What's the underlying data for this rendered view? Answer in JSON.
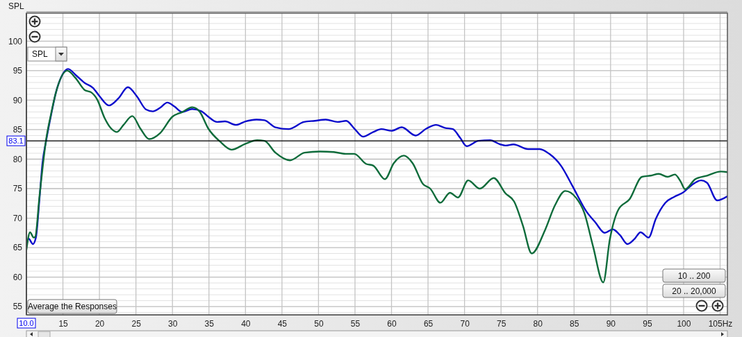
{
  "chart_data": {
    "type": "line",
    "ylabel": "SPL",
    "xlim": [
      10,
      106
    ],
    "ylim": [
      53.6,
      104.75
    ],
    "xticks": [
      15,
      20,
      25,
      30,
      35,
      40,
      45,
      50,
      55,
      60,
      65,
      70,
      75,
      80,
      85,
      90,
      95,
      100,
      {
        "value": 105,
        "label": "105Hz"
      }
    ],
    "yticks": [
      {
        "value": 54,
        "label": null
      },
      55,
      {
        "value": 56,
        "label": null
      },
      {
        "value": 57,
        "label": null
      },
      {
        "value": 58,
        "label": null
      },
      {
        "value": 59,
        "label": null
      },
      60,
      {
        "value": 61,
        "label": null
      },
      {
        "value": 62,
        "label": null
      },
      {
        "value": 63,
        "label": null
      },
      {
        "value": 64,
        "label": null
      },
      65,
      {
        "value": 66,
        "label": null
      },
      {
        "value": 67,
        "label": null
      },
      {
        "value": 68,
        "label": null
      },
      {
        "value": 69,
        "label": null
      },
      70,
      {
        "value": 71,
        "label": null
      },
      {
        "value": 72,
        "label": null
      },
      {
        "value": 73,
        "label": null
      },
      {
        "value": 74,
        "label": null
      },
      75,
      {
        "value": 76,
        "label": null
      },
      {
        "value": 77,
        "label": null
      },
      {
        "value": 78,
        "label": null
      },
      {
        "value": 79,
        "label": null
      },
      80,
      {
        "value": 81,
        "label": null
      },
      {
        "value": 82,
        "label": null
      },
      {
        "value": 83,
        "label": null
      },
      {
        "value": 84,
        "label": null
      },
      85,
      {
        "value": 86,
        "label": null
      },
      {
        "value": 87,
        "label": null
      },
      {
        "value": 88,
        "label": null
      },
      {
        "value": 89,
        "label": null
      },
      90,
      {
        "value": 91,
        "label": null
      },
      {
        "value": 92,
        "label": null
      },
      {
        "value": 93,
        "label": null
      },
      {
        "value": 94,
        "label": null
      },
      95,
      {
        "value": 96,
        "label": null
      },
      {
        "value": 97,
        "label": null
      },
      {
        "value": 98,
        "label": null
      },
      {
        "value": 99,
        "label": null
      },
      100,
      {
        "value": 101,
        "label": null
      },
      {
        "value": 102,
        "label": null
      },
      {
        "value": 103,
        "label": null
      },
      {
        "value": 104,
        "label": null
      }
    ],
    "grid": true,
    "series": [
      {
        "color": "#0a0acc",
        "x": [
          10.0,
          10.3,
          10.9,
          11.3,
          11.8,
          12.2,
          12.7,
          13.4,
          14.0,
          14.8,
          15.7,
          16.8,
          18.0,
          19.1,
          20.0,
          21.3,
          22.6,
          23.9,
          25.1,
          26.4,
          27.3,
          28.3,
          29.3,
          30.3,
          31.3,
          32.7,
          34.0,
          34.9,
          36.1,
          37.2,
          38.7,
          40.0,
          41.5,
          42.6,
          44.1,
          45.9,
          48.0,
          49.5,
          51.0,
          52.6,
          53.8,
          54.9,
          56.1,
          57.5,
          58.6,
          60.0,
          61.4,
          63.3,
          64.8,
          66.1,
          67.3,
          68.4,
          69.4,
          70.3,
          71.9,
          73.5,
          74.9,
          75.6,
          76.7,
          78.7,
          80.3,
          81.6,
          83.2,
          84.8,
          86.7,
          87.9,
          89.2,
          90.3,
          91.3,
          92.3,
          93.3,
          94.1,
          95.2,
          96.2,
          97.5,
          98.7,
          100.0,
          101.1,
          102.4,
          103.2,
          104.6,
          106.0
        ],
        "values": [
          65.4,
          66.5,
          65.6,
          66.7,
          73.4,
          79.3,
          83.1,
          87.6,
          91.1,
          94.0,
          95.3,
          94.2,
          92.9,
          92.1,
          90.7,
          89.1,
          90.3,
          92.2,
          90.7,
          88.4,
          88.1,
          88.7,
          89.6,
          88.9,
          88.0,
          88.5,
          88.1,
          87.2,
          86.3,
          86.4,
          85.8,
          86.4,
          86.7,
          86.6,
          85.4,
          85.1,
          86.3,
          86.5,
          86.7,
          86.3,
          86.5,
          85.2,
          83.8,
          84.6,
          85.1,
          84.8,
          85.4,
          84.0,
          85.2,
          85.8,
          85.3,
          85.1,
          83.6,
          82.2,
          83.1,
          83.2,
          82.5,
          82.3,
          82.5,
          81.7,
          81.7,
          80.9,
          78.9,
          75.4,
          71.1,
          69.3,
          67.5,
          68.1,
          67.1,
          65.6,
          66.5,
          67.6,
          66.7,
          69.9,
          72.6,
          73.6,
          74.4,
          75.6,
          76.4,
          76.0,
          73.0,
          73.7
        ]
      },
      {
        "color": "#0d6b3a",
        "x": [
          10.0,
          10.5,
          11.0,
          11.2,
          11.8,
          12.7,
          13.4,
          14.0,
          15.6,
          16.7,
          18.0,
          18.9,
          19.7,
          20.7,
          21.6,
          22.4,
          23.3,
          24.5,
          25.6,
          26.8,
          28.3,
          30.0,
          31.4,
          32.7,
          33.7,
          34.9,
          36.5,
          38.1,
          40.0,
          41.6,
          42.6,
          44.1,
          46.1,
          48.1,
          50.2,
          52.1,
          53.7,
          54.9,
          56.5,
          57.5,
          59.1,
          60.3,
          61.7,
          62.9,
          64.3,
          65.3,
          66.7,
          68.0,
          69.1,
          70.5,
          72.1,
          74.0,
          75.6,
          76.8,
          78.0,
          79.2,
          81.0,
          82.4,
          83.8,
          85.3,
          86.4,
          87.6,
          89.0,
          89.9,
          91.1,
          92.6,
          94.3,
          95.5,
          96.6,
          97.8,
          98.8,
          99.6,
          100.2,
          101.6,
          103.2,
          105.1,
          106.0
        ],
        "values": [
          64.6,
          67.6,
          66.7,
          66.8,
          73.8,
          83.3,
          87.8,
          91.1,
          95.0,
          93.8,
          91.7,
          91.3,
          90.1,
          87.0,
          85.2,
          84.6,
          85.8,
          87.3,
          85.2,
          83.4,
          84.4,
          87.2,
          88.0,
          88.8,
          88.1,
          85.2,
          83.0,
          81.6,
          82.6,
          83.2,
          83.1,
          81.1,
          79.8,
          81.1,
          81.3,
          81.2,
          80.9,
          80.9,
          79.2,
          78.9,
          76.6,
          79.3,
          80.6,
          79.3,
          75.8,
          75.0,
          72.6,
          74.3,
          73.5,
          76.4,
          75.0,
          76.8,
          74.2,
          72.8,
          68.7,
          64.0,
          67.9,
          72.2,
          74.6,
          73.4,
          70.9,
          65.2,
          59.1,
          66.4,
          71.5,
          73.2,
          77.0,
          77.2,
          77.5,
          77.0,
          77.4,
          76.2,
          74.9,
          76.6,
          77.2,
          77.9,
          77.8
        ]
      }
    ],
    "ref_lines": [
      {
        "axis": "y",
        "value": 83.1,
        "label": "83.1",
        "color": "#000000"
      },
      {
        "axis": "x",
        "value": 10,
        "label": "10.0",
        "color": "#000000"
      }
    ],
    "annotations": [
      "SPL",
      "Average the Responses",
      "10 .. 200",
      "20 .. 20,000"
    ]
  }
}
